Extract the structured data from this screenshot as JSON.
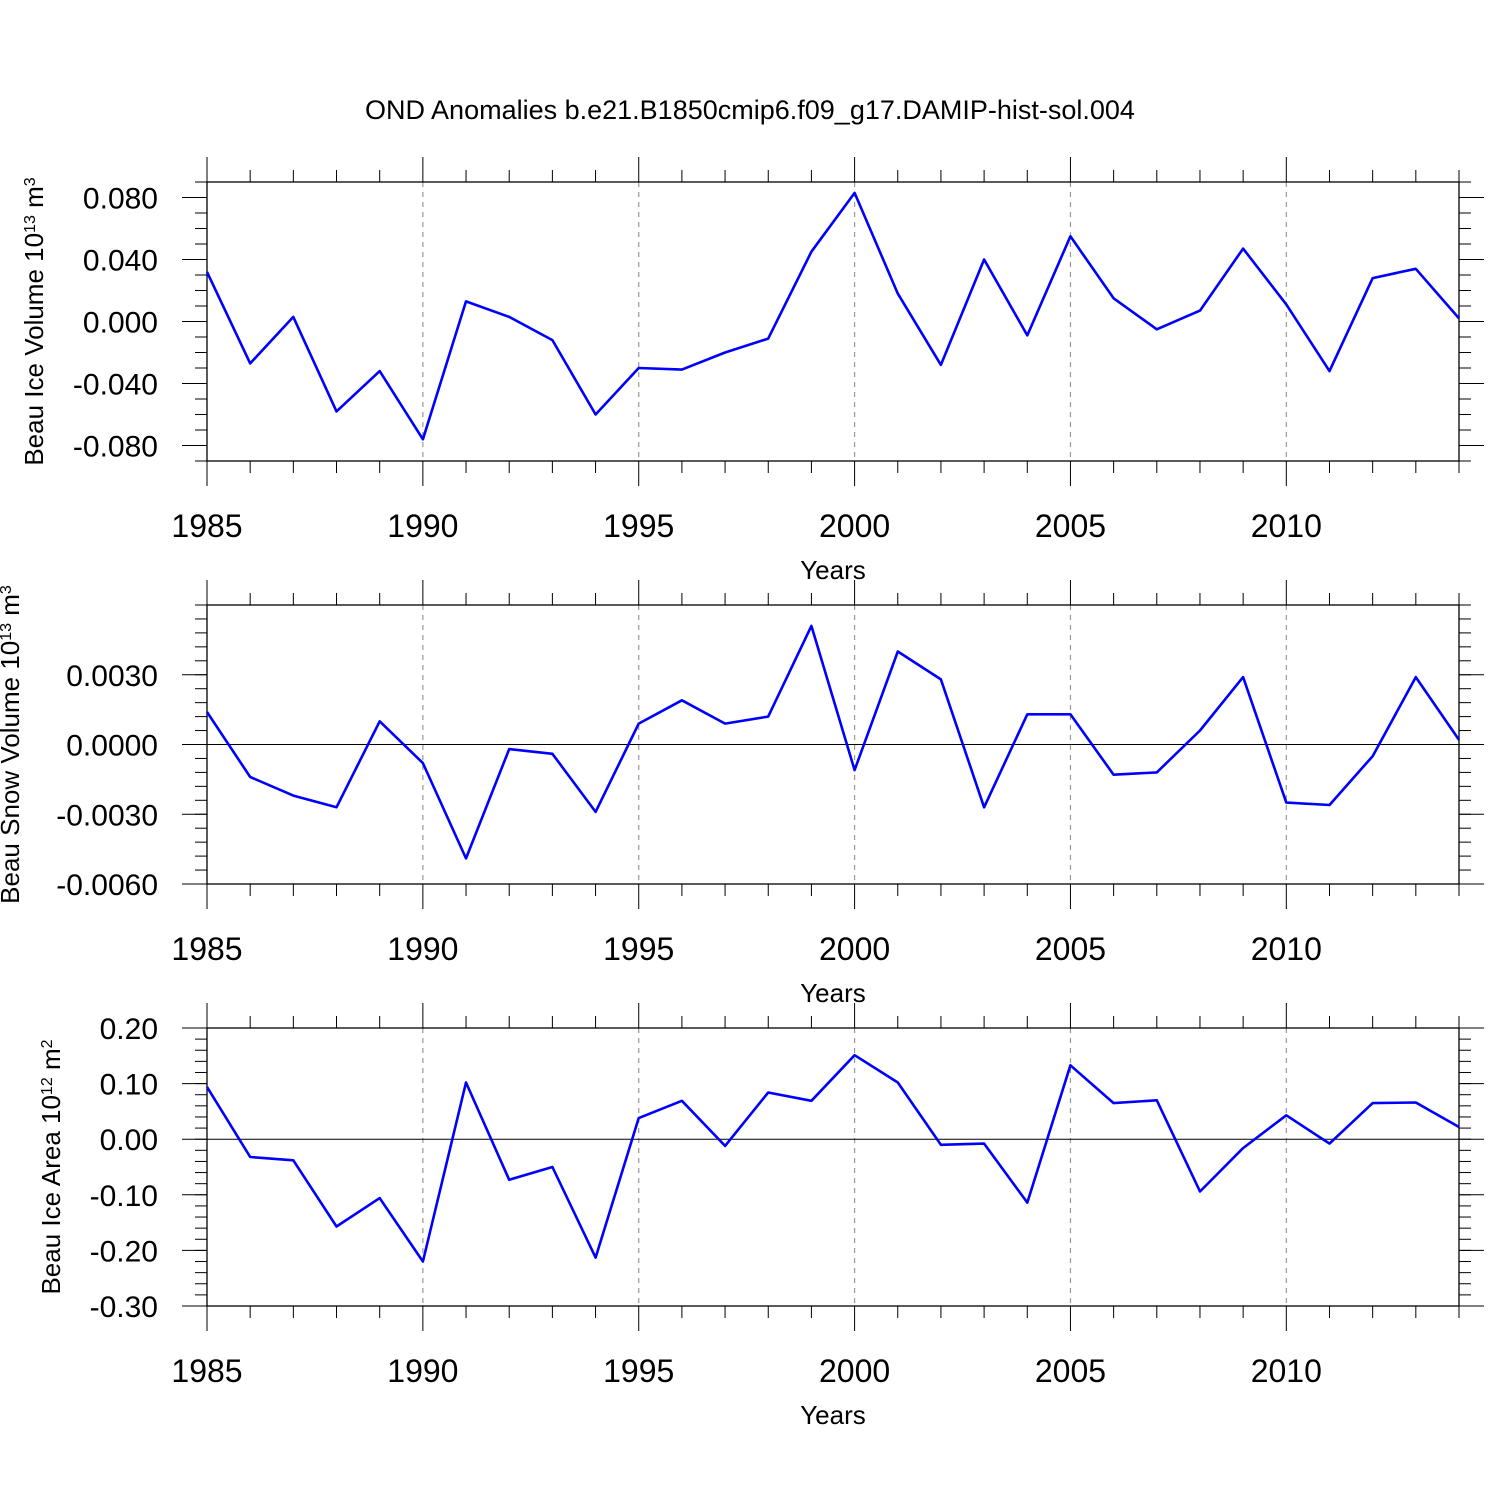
{
  "figure": {
    "title": "OND Anomalies b.e21.B1850cmip6.f09_g17.DAMIP-hist-sol.004",
    "line_color": "#0000ff"
  },
  "chart_data": [
    {
      "type": "line",
      "ylabel": {
        "main": "Beau Ice Volume 10",
        "sup": "13",
        "mid": " m",
        "sup2": "3"
      },
      "xlabel": "Years",
      "xlim": [
        1985,
        2014
      ],
      "ylim": [
        -0.09,
        0.09
      ],
      "yticks": [
        -0.08,
        -0.04,
        0.0,
        0.04,
        0.08
      ],
      "ytick_labels": [
        "-0.080",
        "-0.040",
        "0.000",
        "0.040",
        "0.080"
      ],
      "yminor_step": 0.01,
      "xticks": [
        1985,
        1990,
        1995,
        2000,
        2005,
        2010
      ],
      "xtick_labels": [
        "1985",
        "1990",
        "1995",
        "2000",
        "2005",
        "2010"
      ],
      "x": [
        1985,
        1986,
        1987,
        1988,
        1989,
        1990,
        1991,
        1992,
        1993,
        1994,
        1995,
        1996,
        1997,
        1998,
        1999,
        2000,
        2001,
        2002,
        2003,
        2004,
        2005,
        2006,
        2007,
        2008,
        2009,
        2010,
        2011,
        2012,
        2013,
        2014
      ],
      "series": [
        {
          "values": [
            0.032,
            -0.027,
            0.003,
            -0.058,
            -0.032,
            -0.076,
            0.013,
            0.003,
            -0.012,
            -0.06,
            -0.03,
            -0.031,
            -0.02,
            -0.011,
            0.045,
            0.083,
            0.018,
            -0.028,
            0.04,
            -0.009,
            0.055,
            0.015,
            -0.005,
            0.007,
            0.047,
            0.011,
            -0.032,
            0.028,
            0.034,
            0.002
          ]
        }
      ]
    },
    {
      "type": "line",
      "ylabel": {
        "main": "Beau Snow Volume 10",
        "sup": "13",
        "mid": " m",
        "sup2": "3"
      },
      "xlabel": "Years",
      "xlim": [
        1985,
        2014
      ],
      "ylim": [
        -0.006,
        0.006
      ],
      "yticks": [
        -0.006,
        -0.003,
        0.0,
        0.003
      ],
      "ytick_labels": [
        "-0.0060",
        "-0.0030",
        "0.0000",
        "0.0030"
      ],
      "yminor_step": 0.0006,
      "xticks": [
        1985,
        1990,
        1995,
        2000,
        2005,
        2010
      ],
      "xtick_labels": [
        "1985",
        "1990",
        "1995",
        "2000",
        "2005",
        "2010"
      ],
      "x": [
        1985,
        1986,
        1987,
        1988,
        1989,
        1990,
        1991,
        1992,
        1993,
        1994,
        1995,
        1996,
        1997,
        1998,
        1999,
        2000,
        2001,
        2002,
        2003,
        2004,
        2005,
        2006,
        2007,
        2008,
        2009,
        2010,
        2011,
        2012,
        2013,
        2014
      ],
      "series": [
        {
          "values": [
            0.0014,
            -0.0014,
            -0.0022,
            -0.0027,
            0.001,
            -0.0008,
            -0.0049,
            -0.0002,
            -0.0004,
            -0.0029,
            0.0009,
            0.0019,
            0.0009,
            0.0012,
            0.0051,
            -0.0011,
            0.004,
            0.0028,
            -0.0027,
            0.0013,
            0.0013,
            -0.0013,
            -0.0012,
            0.0006,
            0.0029,
            -0.0025,
            -0.0026,
            -0.0005,
            0.0029,
            0.0002
          ]
        }
      ]
    },
    {
      "type": "line",
      "ylabel": {
        "main": "Beau Ice Area 10",
        "sup": "12",
        "mid": " m",
        "sup2": "2"
      },
      "xlabel": "Years",
      "xlim": [
        1985,
        2014
      ],
      "ylim": [
        -0.3,
        0.2
      ],
      "yticks": [
        -0.3,
        -0.2,
        -0.1,
        0.0,
        0.1,
        0.2
      ],
      "ytick_labels": [
        "-0.30",
        "-0.20",
        "-0.10",
        "0.00",
        "0.10",
        "0.20"
      ],
      "yminor_step": 0.02,
      "xticks": [
        1985,
        1990,
        1995,
        2000,
        2005,
        2010
      ],
      "xtick_labels": [
        "1985",
        "1990",
        "1995",
        "2000",
        "2005",
        "2010"
      ],
      "x": [
        1985,
        1986,
        1987,
        1988,
        1989,
        1990,
        1991,
        1992,
        1993,
        1994,
        1995,
        1996,
        1997,
        1998,
        1999,
        2000,
        2001,
        2002,
        2003,
        2004,
        2005,
        2006,
        2007,
        2008,
        2009,
        2010,
        2011,
        2012,
        2013,
        2014
      ],
      "series": [
        {
          "values": [
            0.094,
            -0.032,
            -0.038,
            -0.157,
            -0.106,
            -0.22,
            0.102,
            -0.073,
            -0.05,
            -0.213,
            0.038,
            0.069,
            -0.012,
            0.084,
            0.069,
            0.151,
            0.102,
            -0.01,
            -0.008,
            -0.114,
            0.133,
            0.065,
            0.07,
            -0.094,
            -0.016,
            0.043,
            -0.008,
            0.065,
            0.066,
            0.022
          ]
        }
      ]
    }
  ]
}
